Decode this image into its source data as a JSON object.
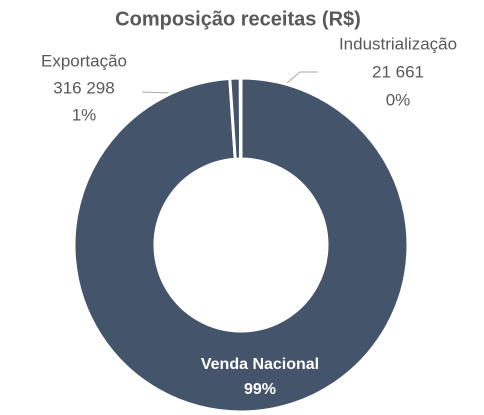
{
  "chart_data": {
    "type": "donut",
    "title": "Composição receitas (R$)",
    "categories": [
      "Venda Nacional",
      "Exportação",
      "Industrialização"
    ],
    "values": [
      31300000,
      316298,
      21661
    ],
    "value_labels": [
      null,
      "316 298",
      "21 661"
    ],
    "percent_labels": [
      "99%",
      "1%",
      "0%"
    ],
    "color": "#44546a"
  }
}
